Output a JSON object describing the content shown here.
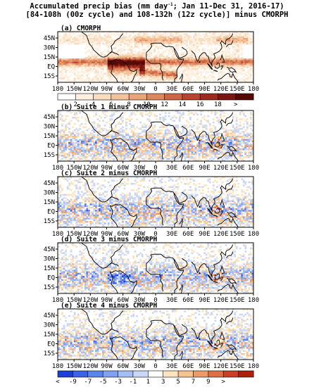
{
  "figure": {
    "title_line1_a": "Accumulated precip bias (mm day",
    "title_line1_sup": "-1",
    "title_line1_b": "; Jan 11-Dec 31, 2016-17)",
    "title_line2": "[84-108h (00z cycle) and 108-132h (12z cycle)] minus CMORPH"
  },
  "panels": [
    {
      "label": "(a) CMORPH",
      "kind": "abs",
      "seed": 11
    },
    {
      "label": "(b) Suite 1 minus CMORPH",
      "kind": "diff",
      "seed": 23
    },
    {
      "label": "(c) Suite 2 minus CMORPH",
      "kind": "diff",
      "seed": 37
    },
    {
      "label": "(d) Suite 3 minus CMORPH",
      "kind": "diff",
      "seed": 53
    },
    {
      "label": "(e) Suite 4 minus CMORPH",
      "kind": "diff",
      "seed": 71
    }
  ],
  "axes": {
    "lat_labels": [
      "45N",
      "30N",
      "15N",
      "EQ",
      "15S"
    ],
    "lon_labels": [
      "180",
      "150W",
      "120W",
      "90W",
      "60W",
      "30W",
      "0",
      "30E",
      "60E",
      "90E",
      "120E",
      "150E",
      "180"
    ]
  },
  "colorbar_abs": {
    "labels": [
      "2",
      "4",
      "6",
      "8",
      "10",
      "12",
      "14",
      "16",
      "18",
      ">"
    ],
    "colors": [
      "#ffffff",
      "#fdf0e0",
      "#f9ddc0",
      "#f3c39b",
      "#e9a57a",
      "#dd855d",
      "#cd6445",
      "#b8442f",
      "#9c2a1d",
      "#7a150f",
      "#560a06"
    ]
  },
  "colorbar_diff": {
    "labels": [
      "<",
      "-9",
      "-7",
      "-5",
      "-3",
      "-1",
      "1",
      "3",
      "5",
      "7",
      "9",
      ">"
    ],
    "colors": [
      "#1c3fd9",
      "#3a63ea",
      "#5a83f0",
      "#7ea1f3",
      "#a3bdf5",
      "#c9d8f8",
      "#ffffff",
      "#fbe3bd",
      "#f6c28d",
      "#ee9a66",
      "#e26c44",
      "#cc3f24",
      "#b0200f"
    ]
  }
}
